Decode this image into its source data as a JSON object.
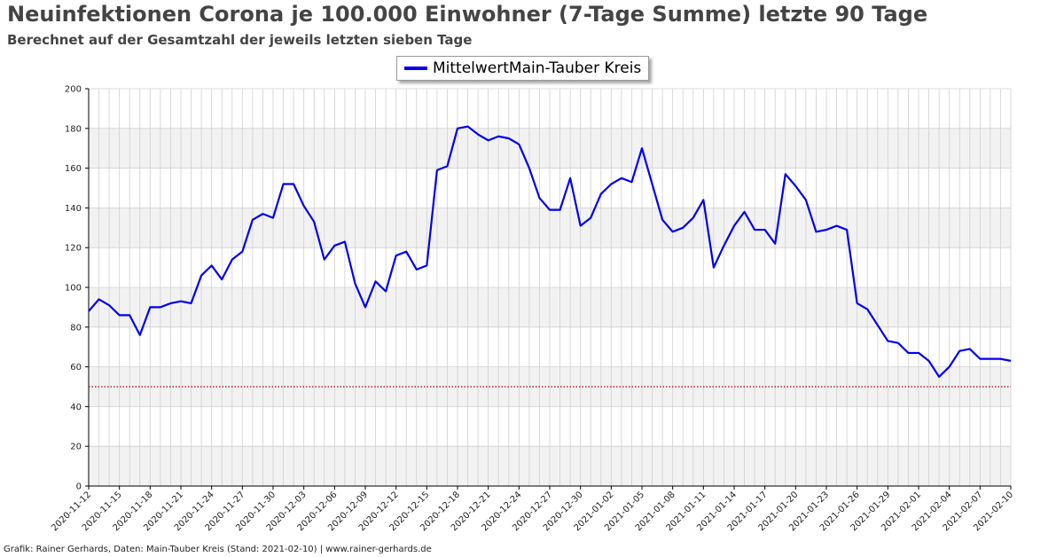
{
  "header": {
    "title": "Neuinfektionen Corona je 100.000 Einwohner (7-Tage Summe) letzte 90 Tage",
    "subtitle": "Berechnet auf der Gesamtzahl der jeweils letzten sieben Tage"
  },
  "footer": {
    "text": "Grafik: Rainer Gerhards, Daten: Main-Tauber Kreis (Stand: 2021-02-10) | www.rainer-gerhards.de"
  },
  "colors": {
    "series": "#0000ee",
    "threshold": "#aa0000",
    "band": "#f2f2f2",
    "grid": "#d0d0d0"
  },
  "chart_data": {
    "type": "line",
    "title": "Neuinfektionen Corona je 100.000 Einwohner (7-Tage Summe) letzte 90 Tage",
    "subtitle": "Berechnet auf der Gesamtzahl der jeweils letzten sieben Tage",
    "xlabel": "",
    "ylabel": "",
    "ylim": [
      0,
      200
    ],
    "yticks": [
      0,
      20,
      40,
      60,
      80,
      100,
      120,
      140,
      160,
      180,
      200
    ],
    "x_start": "2020-11-12",
    "x_end": "2021-02-10",
    "x_tick_labels": [
      "2020-11-12",
      "2020-11-15",
      "2020-11-18",
      "2020-11-21",
      "2020-11-24",
      "2020-11-27",
      "2020-11-30",
      "2020-12-03",
      "2020-12-06",
      "2020-12-09",
      "2020-12-12",
      "2020-12-15",
      "2020-12-18",
      "2020-12-21",
      "2020-12-24",
      "2020-12-27",
      "2020-12-30",
      "2021-01-02",
      "2021-01-05",
      "2021-01-08",
      "2021-01-11",
      "2021-01-14",
      "2021-01-17",
      "2021-01-20",
      "2021-01-23",
      "2021-01-26",
      "2021-01-29",
      "2021-02-01",
      "2021-02-04",
      "2021-02-07",
      "2021-02-10"
    ],
    "threshold": 50,
    "grid": true,
    "legend_position": "top-center",
    "series": [
      {
        "name": "MittelwertMain-Tauber Kreis",
        "values": [
          88,
          94,
          91,
          86,
          86,
          76,
          90,
          90,
          92,
          93,
          92,
          106,
          111,
          104,
          114,
          118,
          134,
          137,
          135,
          152,
          152,
          141,
          133,
          114,
          121,
          123,
          102,
          90,
          103,
          98,
          116,
          118,
          109,
          111,
          159,
          161,
          180,
          181,
          177,
          174,
          176,
          175,
          172,
          160,
          145,
          139,
          139,
          155,
          131,
          135,
          147,
          152,
          155,
          153,
          170,
          152,
          134,
          128,
          130,
          135,
          144,
          110,
          121,
          131,
          138,
          129,
          129,
          122,
          157,
          151,
          144,
          128,
          129,
          131,
          129,
          92,
          89,
          81,
          73,
          72,
          67,
          67,
          63,
          55,
          60,
          68,
          69,
          64,
          64,
          64,
          63
        ]
      }
    ]
  }
}
